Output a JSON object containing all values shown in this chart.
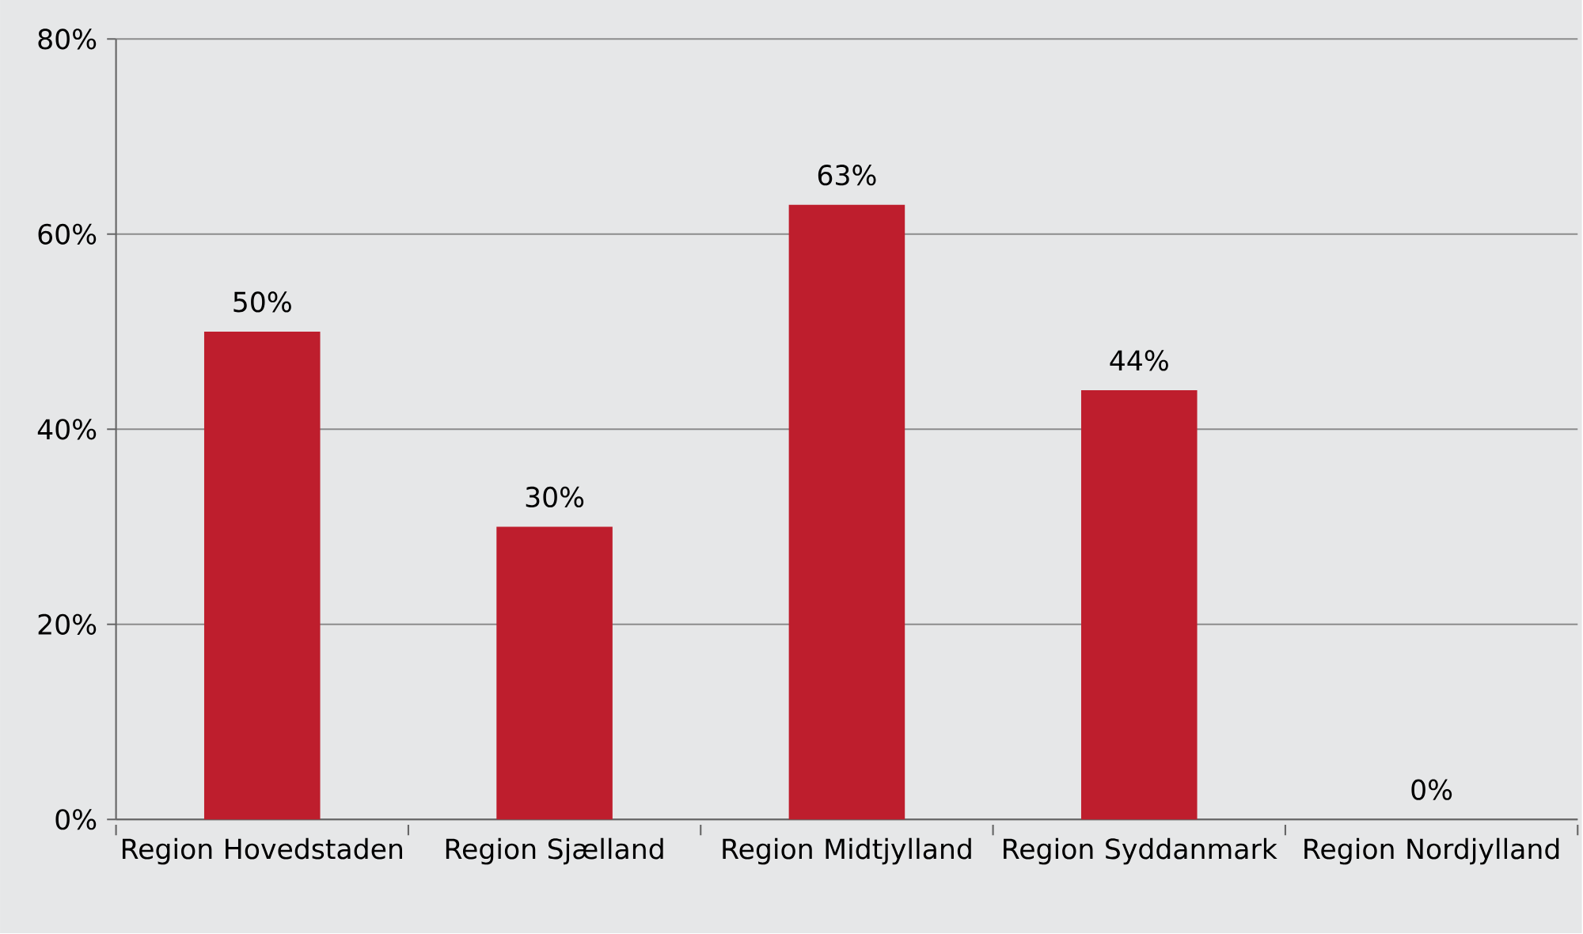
{
  "chart_data": {
    "type": "bar",
    "categories": [
      "Region Hovedstaden",
      "Region Sjælland",
      "Region Midtjylland",
      "Region Syddanmark",
      "Region Nordjylland"
    ],
    "values": [
      50,
      30,
      63,
      44,
      0
    ],
    "value_labels": [
      "50%",
      "30%",
      "63%",
      "44%",
      "0%"
    ],
    "color": "#be1e2d",
    "ylim": [
      0,
      80
    ],
    "yticks": [
      {
        "value": 0,
        "label": "0%"
      },
      {
        "value": 20,
        "label": "20%"
      },
      {
        "value": 40,
        "label": "40%"
      },
      {
        "value": 60,
        "label": "60%"
      },
      {
        "value": 80,
        "label": "80%"
      }
    ],
    "grid": "y"
  }
}
